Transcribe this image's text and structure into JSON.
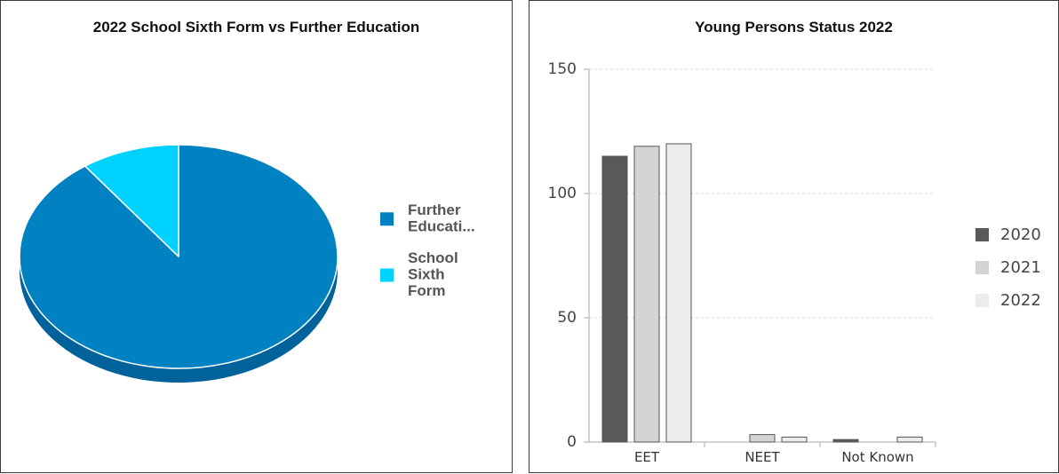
{
  "chart_data": [
    {
      "type": "pie",
      "title": "2022 School Sixth Form vs Further Education",
      "slices": [
        {
          "label": "Further Educati...",
          "label_lines": [
            "Further",
            "Educati..."
          ],
          "value": 90,
          "color": "#0081c2",
          "side_color": "#00629a"
        },
        {
          "label": "School Sixth Form",
          "label_lines": [
            "School",
            "Sixth",
            "Form"
          ],
          "value": 10,
          "color": "#00d2ff",
          "side_color": "#00a7cc"
        }
      ],
      "legend_position": "right"
    },
    {
      "type": "bar",
      "title": "Young Persons Status 2022",
      "categories": [
        "EET",
        "NEET",
        "Not Known"
      ],
      "series": [
        {
          "name": "2020",
          "values": [
            115,
            0,
            1
          ],
          "color": "#595959"
        },
        {
          "name": "2021",
          "values": [
            119,
            3,
            0
          ],
          "color": "#d4d4d4"
        },
        {
          "name": "2022",
          "values": [
            120,
            2,
            2
          ],
          "color": "#ececec"
        }
      ],
      "ylim": [
        0,
        150
      ],
      "yticks": [
        0,
        50,
        100,
        150
      ],
      "grid": true,
      "legend_position": "right"
    }
  ]
}
